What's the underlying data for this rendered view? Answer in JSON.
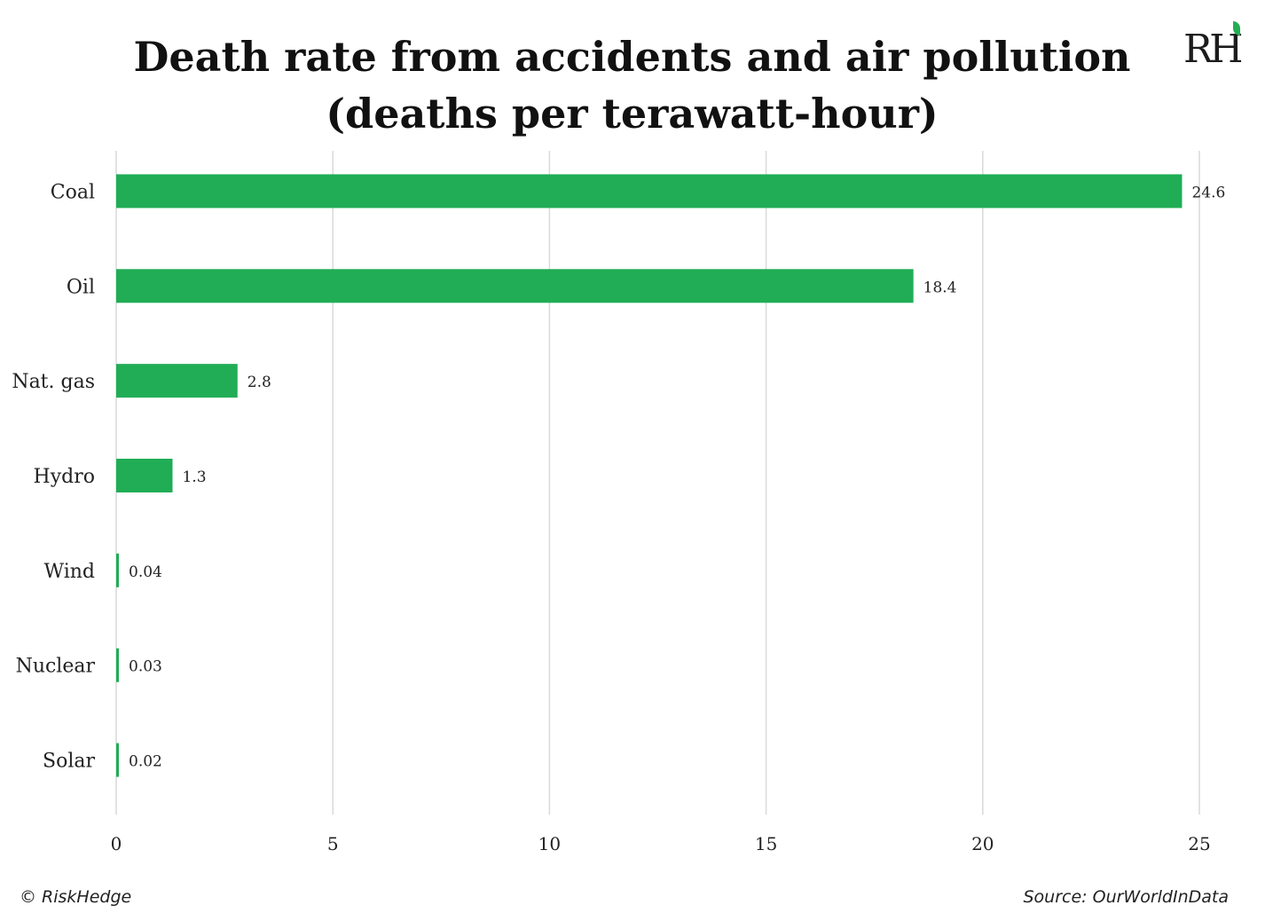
{
  "title_line1": "Death rate from accidents and air pollution",
  "title_line2": "(deaths per terawatt-hour)",
  "logo_text": "RH",
  "copyright": "© RiskHedge",
  "source": "Source: OurWorldInData",
  "colors": {
    "bar": "#20ad55",
    "grid": "#d9d9d9",
    "text": "#222222"
  },
  "chart_data": {
    "type": "bar",
    "orientation": "horizontal",
    "categories": [
      "Coal",
      "Oil",
      "Nat. gas",
      "Hydro",
      "Wind",
      "Nuclear",
      "Solar"
    ],
    "values": [
      24.6,
      18.4,
      2.8,
      1.3,
      0.04,
      0.03,
      0.02
    ],
    "value_labels": [
      "24.6",
      "18.4",
      "2.8",
      "1.3",
      "0.04",
      "0.03",
      "0.02"
    ],
    "xlim": [
      0,
      25
    ],
    "xticks": [
      0,
      5,
      10,
      15,
      20,
      25
    ],
    "grid": true,
    "legend": "none"
  }
}
